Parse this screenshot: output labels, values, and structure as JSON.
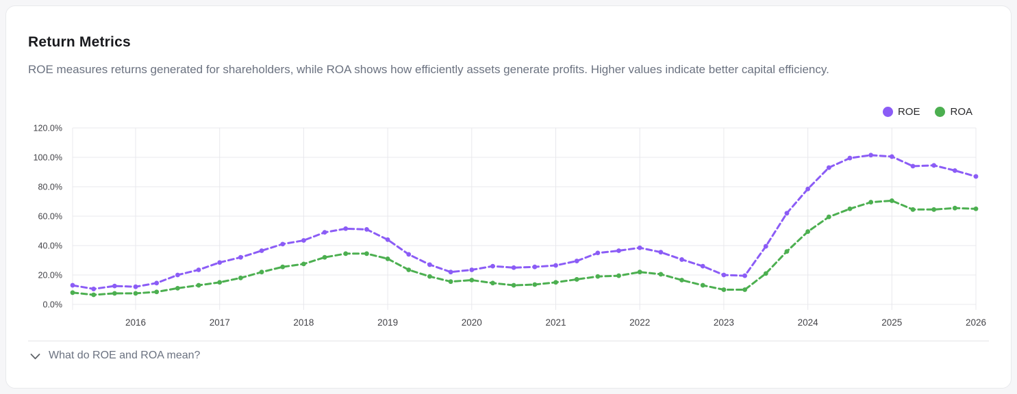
{
  "card": {
    "title": "Return Metrics",
    "subtitle": "ROE measures returns generated for shareholders, while ROA shows how efficiently assets generate profits. Higher values indicate better capital efficiency.",
    "disclosure_label": "What do ROE and ROA mean?",
    "disclosure_icon": "chevron-down-icon"
  },
  "legend": {
    "position": "top-right",
    "items": [
      {
        "label": "ROE",
        "color": "#8b5cf6"
      },
      {
        "label": "ROA",
        "color": "#4caf50"
      }
    ]
  },
  "colors": {
    "grid": "#e8e8ec",
    "axis_text": "#424247",
    "roe": "#8b5cf6",
    "roa": "#4caf50",
    "title_text": "#191a1e",
    "muted_text": "#6b7280"
  },
  "chart_data": {
    "type": "line",
    "title": "Return Metrics",
    "x_unit": "quarter",
    "x_domain": [
      2015.25,
      2026
    ],
    "x_step": 0.25,
    "x_tick_years": [
      2016,
      2017,
      2018,
      2019,
      2020,
      2021,
      2022,
      2023,
      2024,
      2025,
      2026
    ],
    "x_tick_labels": [
      "2016",
      "2017",
      "2018",
      "2019",
      "2020",
      "2021",
      "2022",
      "2023",
      "2024",
      "2025",
      "2026"
    ],
    "ylim": [
      0,
      120
    ],
    "y_tick_step": 20,
    "y_tick_labels": [
      "0.0%",
      "20.0%",
      "40.0%",
      "60.0%",
      "80.0%",
      "100.0%",
      "120.0%"
    ],
    "grid": true,
    "legend_position": "top-right",
    "line_style": "dashed-with-dots",
    "series": [
      {
        "name": "ROE",
        "color": "#8b5cf6",
        "values": [
          13,
          10.5,
          12.5,
          12,
          14.5,
          20,
          23.5,
          28.5,
          32,
          36.5,
          41,
          43.5,
          49,
          51.5,
          51,
          44,
          34,
          27,
          22,
          23.5,
          26,
          25,
          25.5,
          26.5,
          29.5,
          35,
          36.5,
          38.5,
          35.5,
          30.5,
          26,
          20,
          19.5,
          39.5,
          62,
          78.5,
          93,
          99.5,
          101.5,
          100.5,
          94,
          94.5,
          91,
          87
        ]
      },
      {
        "name": "ROA",
        "color": "#4caf50",
        "values": [
          8,
          6.5,
          7.5,
          7.5,
          8.5,
          11,
          13,
          15,
          18,
          22,
          25.5,
          27.5,
          32,
          34.5,
          34.5,
          31,
          23.5,
          19,
          15.5,
          16.5,
          14.5,
          13,
          13.5,
          15,
          17,
          19,
          19.5,
          22,
          20.5,
          16.5,
          13,
          10,
          10,
          21,
          36,
          49.5,
          59.5,
          65,
          69.5,
          70.5,
          64.5,
          64.5,
          65.5,
          65
        ]
      }
    ]
  }
}
